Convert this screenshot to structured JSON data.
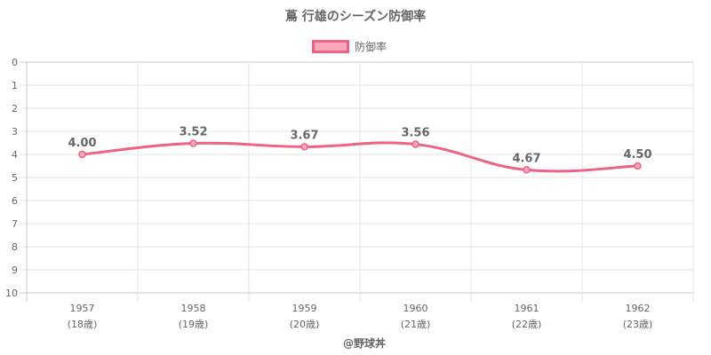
{
  "chart_data": {
    "type": "line",
    "title": "蔦 行雄のシーズン防御率",
    "legend": {
      "position": "top",
      "entries": [
        "防御率"
      ]
    },
    "x": [
      {
        "year": "1957",
        "age": "(18歳)"
      },
      {
        "year": "1958",
        "age": "(19歳)"
      },
      {
        "year": "1959",
        "age": "(20歳)"
      },
      {
        "year": "1960",
        "age": "(21歳)"
      },
      {
        "year": "1961",
        "age": "(22歳)"
      },
      {
        "year": "1962",
        "age": "(23歳)"
      }
    ],
    "series": [
      {
        "name": "防御率",
        "values": [
          4.0,
          3.52,
          3.67,
          3.56,
          4.67,
          4.5
        ],
        "labels": [
          "4.00",
          "3.52",
          "3.67",
          "3.56",
          "4.67",
          "4.50"
        ],
        "color": "#f06283",
        "fill": "#f7a8bb"
      }
    ],
    "ylim": [
      0,
      10
    ],
    "y_reversed": true,
    "yticks": [
      "0",
      "1",
      "2",
      "3",
      "4",
      "5",
      "6",
      "7",
      "8",
      "9",
      "10"
    ],
    "grid": true
  },
  "credit": "@野球丼"
}
